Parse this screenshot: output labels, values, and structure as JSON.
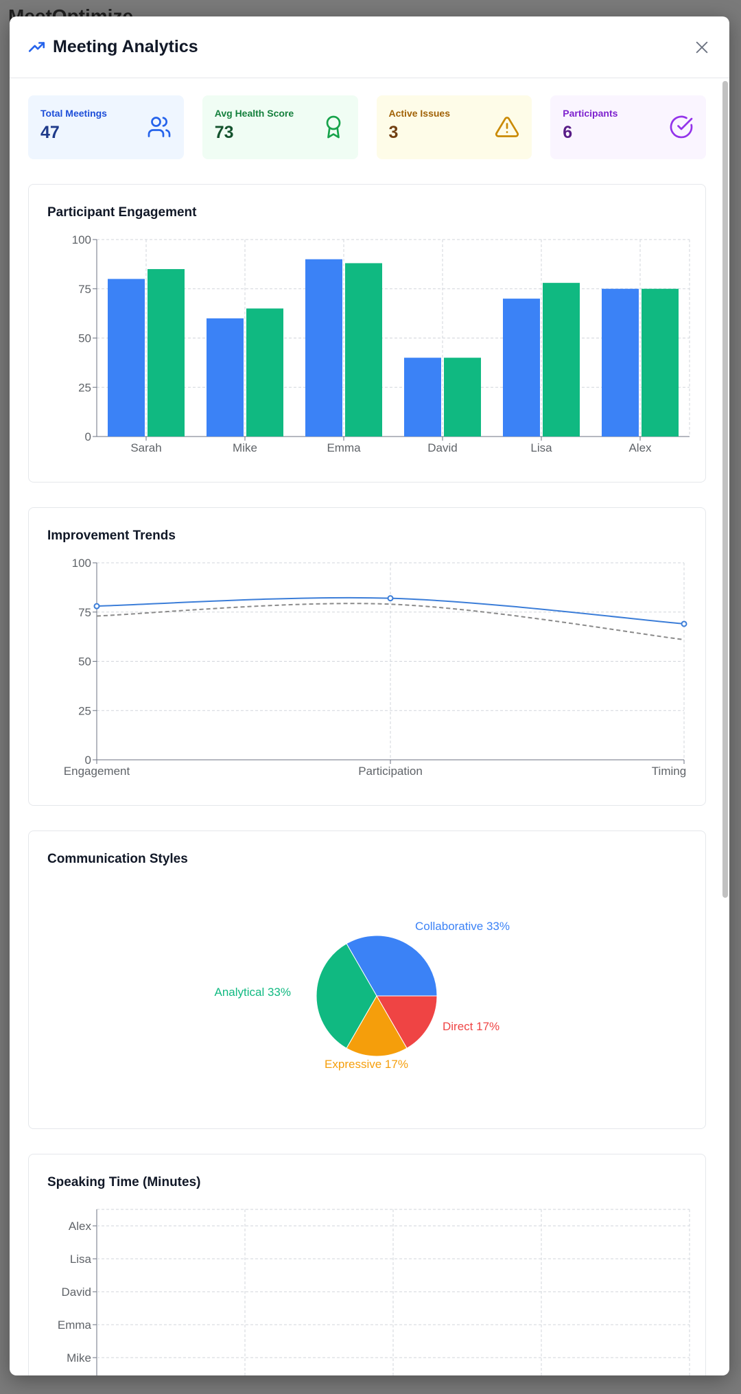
{
  "background": {
    "title": "MeetOptimize"
  },
  "modal": {
    "title": "Meeting Analytics",
    "title_icon": "trending-up-icon",
    "close_icon": "close-icon"
  },
  "stats": [
    {
      "label": "Total Meetings",
      "value": "47",
      "icon": "users-icon",
      "bg": "#eff6ff",
      "label_color": "#1d4ed8",
      "value_color": "#1e3a8a",
      "icon_color": "#2563eb"
    },
    {
      "label": "Avg Health Score",
      "value": "73",
      "icon": "award-icon",
      "bg": "#f0fdf4",
      "label_color": "#15803d",
      "value_color": "#14532d",
      "icon_color": "#16a34a"
    },
    {
      "label": "Active Issues",
      "value": "3",
      "icon": "alert-triangle-icon",
      "bg": "#fefce8",
      "label_color": "#a16207",
      "value_color": "#713f12",
      "icon_color": "#ca8a04"
    },
    {
      "label": "Participants",
      "value": "6",
      "icon": "check-circle-icon",
      "bg": "#faf5ff",
      "label_color": "#7e22ce",
      "value_color": "#581c87",
      "icon_color": "#9333ea"
    }
  ],
  "cards": {
    "engagement": "Participant Engagement",
    "trends": "Improvement Trends",
    "styles": "Communication Styles",
    "speaking": "Speaking Time (Minutes)"
  },
  "colors": {
    "blue": "#3b82f6",
    "green": "#10b981",
    "amber": "#f59e0b",
    "red": "#ef4444",
    "line_blue": "#3b7dd8",
    "dashed_gray": "#8a8a8a",
    "grid": "#d1d5db",
    "axis": "#6b7280"
  },
  "chart_data": [
    {
      "type": "bar",
      "title": "Participant Engagement",
      "categories": [
        "Sarah",
        "Mike",
        "Emma",
        "David",
        "Lisa",
        "Alex"
      ],
      "series": [
        {
          "values": [
            80,
            60,
            90,
            40,
            70,
            75
          ],
          "color": "#3b82f6"
        },
        {
          "values": [
            85,
            65,
            88,
            40,
            78,
            75
          ],
          "color": "#10b981"
        }
      ],
      "ylim": [
        0,
        100
      ],
      "yticks": [
        0,
        25,
        50,
        75,
        100
      ],
      "grid": true
    },
    {
      "type": "line",
      "title": "Improvement Trends",
      "categories": [
        "Engagement",
        "Participation",
        "Timing"
      ],
      "series": [
        {
          "values": [
            78,
            82,
            69
          ],
          "style": "solid",
          "color": "#3b7dd8"
        },
        {
          "values": [
            73,
            79,
            61
          ],
          "style": "dashed",
          "color": "#8a8a8a"
        }
      ],
      "ylim": [
        0,
        100
      ],
      "yticks": [
        0,
        25,
        50,
        75,
        100
      ],
      "grid": true
    },
    {
      "type": "pie",
      "title": "Communication Styles",
      "slices": [
        {
          "label": "Collaborative 33%",
          "value": 33.33,
          "color": "#3b82f6"
        },
        {
          "label": "Direct 17%",
          "value": 16.67,
          "color": "#ef4444"
        },
        {
          "label": "Expressive 17%",
          "value": 16.67,
          "color": "#f59e0b"
        },
        {
          "label": "Analytical 33%",
          "value": 33.33,
          "color": "#10b981"
        }
      ]
    },
    {
      "type": "bar",
      "title": "Speaking Time (Minutes)",
      "orientation": "horizontal",
      "categories": [
        "Alex",
        "Lisa",
        "David",
        "Emma",
        "Mike"
      ],
      "grid": true
    }
  ]
}
